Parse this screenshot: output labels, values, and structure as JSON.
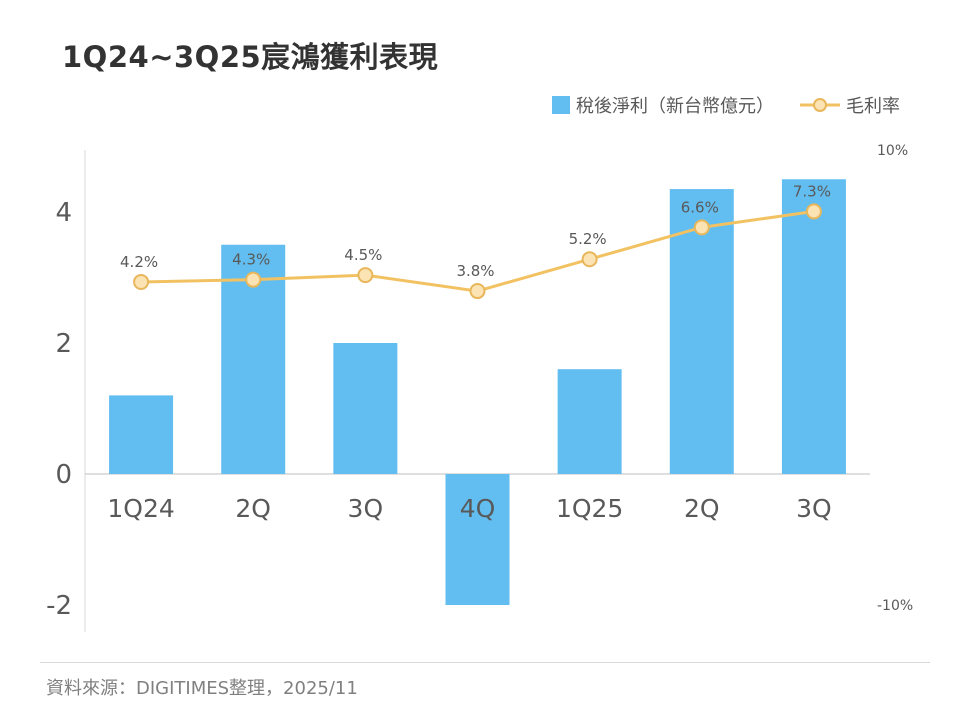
{
  "title": "1Q24~3Q25宸鴻獲利表現",
  "legend": [
    {
      "label": "稅後淨利（新台幣億元）",
      "type": "bar"
    },
    {
      "label": "毛利率",
      "type": "line"
    }
  ],
  "footer": {
    "source": "資料來源：DIGITIMES整理，2025/11"
  },
  "chart_data": {
    "type": "bar+line",
    "categories": [
      "1Q24",
      "2Q",
      "3Q",
      "4Q",
      "1Q25",
      "2Q",
      "3Q"
    ],
    "series": [
      {
        "name": "稅後淨利（新台幣億元）",
        "type": "bar",
        "axis": "left",
        "values": [
          1.2,
          3.5,
          2.0,
          -2.0,
          1.6,
          4.35,
          4.5
        ]
      },
      {
        "name": "毛利率",
        "type": "line",
        "axis": "right",
        "values": [
          4.2,
          4.3,
          4.5,
          3.8,
          5.2,
          6.6,
          7.3
        ],
        "labels": [
          "4.2%",
          "4.3%",
          "4.5%",
          "3.8%",
          "5.2%",
          "6.6%",
          "7.3%"
        ]
      }
    ],
    "left_axis": {
      "ticks": [
        4,
        2,
        0,
        -2
      ],
      "range": [
        -2,
        5
      ]
    },
    "right_axis": {
      "ticks": [
        {
          "label": "10%",
          "value": 10
        },
        {
          "label": "-10%",
          "value": -10
        }
      ],
      "range": [
        -10,
        10
      ]
    },
    "grid": "off",
    "legend_position": "top-right",
    "colors": {
      "bar": "#62BEF0",
      "line": "#F2C262",
      "marker_fill": "#FBE3B3",
      "marker_stroke": "#E8B75C",
      "axis_line": "#D9D9D9",
      "zero_line": "#BFBFBF",
      "label_text": "#595959"
    }
  }
}
